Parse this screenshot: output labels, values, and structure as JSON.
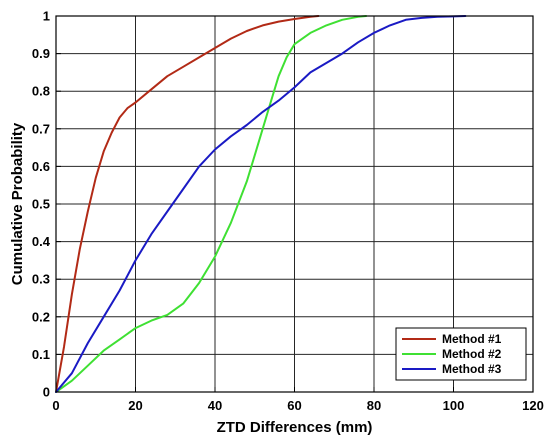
{
  "chart_data": {
    "type": "line",
    "title": "",
    "xlabel": "ZTD Differences (mm)",
    "ylabel": "Cumulative Probability",
    "xlim": [
      0,
      120
    ],
    "ylim": [
      0,
      1
    ],
    "xticks": [
      "0",
      "20",
      "40",
      "60",
      "80",
      "100",
      "120"
    ],
    "yticks": [
      "0",
      "0.1",
      "0.2",
      "0.3",
      "0.4",
      "0.5",
      "0.6",
      "0.7",
      "0.8",
      "0.9",
      "1"
    ],
    "grid": true,
    "legend_position": "bottom-right",
    "series": [
      {
        "name": "Method #1",
        "color": "#b22a16",
        "x": [
          0,
          2,
          4,
          6,
          8,
          10,
          12,
          14,
          16,
          18,
          20,
          24,
          28,
          32,
          36,
          40,
          44,
          48,
          52,
          56,
          60,
          64,
          66
        ],
        "y": [
          0,
          0.12,
          0.26,
          0.38,
          0.48,
          0.57,
          0.64,
          0.69,
          0.73,
          0.755,
          0.77,
          0.805,
          0.84,
          0.865,
          0.89,
          0.915,
          0.94,
          0.96,
          0.975,
          0.985,
          0.992,
          0.998,
          1.0
        ]
      },
      {
        "name": "Method #2",
        "color": "#3fe033",
        "x": [
          0,
          4,
          8,
          12,
          16,
          20,
          24,
          28,
          32,
          36,
          40,
          44,
          48,
          50,
          52,
          54,
          56,
          58,
          60,
          64,
          68,
          72,
          76,
          78
        ],
        "y": [
          0,
          0.03,
          0.07,
          0.11,
          0.14,
          0.17,
          0.19,
          0.205,
          0.235,
          0.29,
          0.36,
          0.45,
          0.56,
          0.63,
          0.7,
          0.77,
          0.84,
          0.89,
          0.925,
          0.955,
          0.975,
          0.99,
          0.998,
          1.0
        ]
      },
      {
        "name": "Method #3",
        "color": "#1a1ac4",
        "x": [
          0,
          4,
          8,
          12,
          16,
          20,
          24,
          28,
          32,
          36,
          40,
          44,
          48,
          52,
          56,
          60,
          64,
          68,
          72,
          76,
          80,
          84,
          88,
          92,
          96,
          100,
          103
        ],
        "y": [
          0,
          0.05,
          0.13,
          0.2,
          0.27,
          0.35,
          0.42,
          0.48,
          0.54,
          0.6,
          0.645,
          0.68,
          0.71,
          0.745,
          0.775,
          0.81,
          0.85,
          0.875,
          0.9,
          0.93,
          0.955,
          0.975,
          0.99,
          0.995,
          0.998,
          0.999,
          1.0
        ]
      }
    ]
  }
}
